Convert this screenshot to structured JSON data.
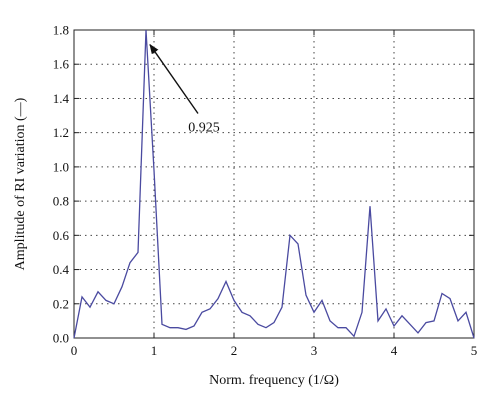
{
  "chart_data": {
    "type": "line",
    "title": "",
    "xlabel": "Norm. frequency (1/Ω)",
    "ylabel": "Amplitude of RI variation (—)",
    "xlim": [
      0,
      5
    ],
    "ylim": [
      0,
      1.8
    ],
    "x_ticks": [
      "0",
      "1",
      "2",
      "3",
      "4",
      "5"
    ],
    "y_ticks": [
      "0.0",
      "0.2",
      "0.4",
      "0.6",
      "0.8",
      "1.0",
      "1.2",
      "1.4",
      "1.6",
      "1.8"
    ],
    "grid": "dotted",
    "series": [
      {
        "color": "#4a4aa0",
        "x": [
          0,
          0.1,
          0.2,
          0.3,
          0.4,
          0.5,
          0.6,
          0.7,
          0.8,
          0.9,
          1.0,
          1.1,
          1.2,
          1.3,
          1.4,
          1.5,
          1.6,
          1.7,
          1.8,
          1.9,
          2.0,
          2.1,
          2.2,
          2.3,
          2.4,
          2.5,
          2.6,
          2.7,
          2.8,
          2.9,
          3.0,
          3.1,
          3.2,
          3.3,
          3.4,
          3.5,
          3.6,
          3.7,
          3.8,
          3.9,
          4.0,
          4.1,
          4.2,
          4.3,
          4.4,
          4.5,
          4.6,
          4.7,
          4.8,
          4.9,
          5.0
        ],
        "y": [
          0.0,
          0.24,
          0.18,
          0.27,
          0.22,
          0.2,
          0.3,
          0.44,
          0.5,
          1.8,
          0.98,
          0.08,
          0.06,
          0.06,
          0.05,
          0.07,
          0.15,
          0.17,
          0.23,
          0.33,
          0.22,
          0.15,
          0.13,
          0.08,
          0.06,
          0.09,
          0.18,
          0.6,
          0.55,
          0.25,
          0.15,
          0.22,
          0.1,
          0.06,
          0.06,
          0.01,
          0.15,
          0.77,
          0.1,
          0.17,
          0.07,
          0.13,
          0.08,
          0.03,
          0.09,
          0.1,
          0.26,
          0.23,
          0.1,
          0.15,
          0.0
        ]
      }
    ],
    "annotation": {
      "text": "0.925",
      "point": [
        0.925,
        1.72
      ],
      "label_at": [
        1.55,
        1.23
      ]
    }
  }
}
